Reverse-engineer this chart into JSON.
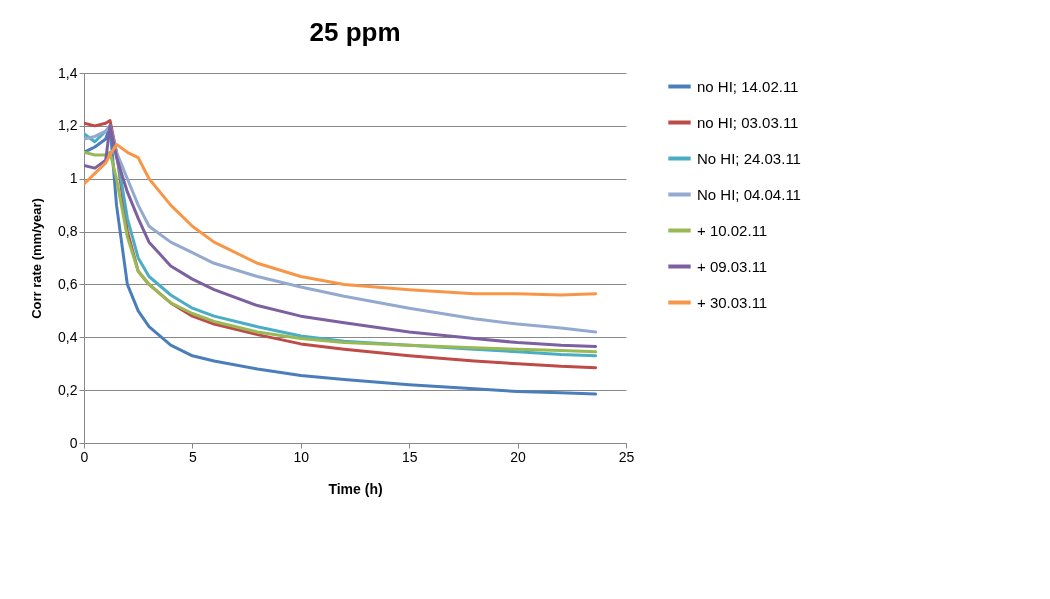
{
  "chart_data": {
    "type": "line",
    "title": "25 ppm",
    "xlabel": "Time (h)",
    "ylabel": "Corr rate (mm/year)",
    "xlim": [
      0,
      25
    ],
    "xticks": [
      0,
      5,
      10,
      15,
      20,
      25
    ],
    "ylim": [
      0,
      1.4
    ],
    "yticks": [
      0,
      {
        "value": 0.2,
        "label": "0,2"
      },
      {
        "value": 0.4,
        "label": "0,4"
      },
      {
        "value": 0.6,
        "label": "0,6"
      },
      {
        "value": 0.8,
        "label": "0,8"
      },
      1,
      {
        "value": 1.2,
        "label": "1,2"
      },
      {
        "value": 1.4,
        "label": "1,4"
      }
    ],
    "grid": "y",
    "legend": "right",
    "marker": "none",
    "line_style": "solid",
    "x": [
      0,
      0.5,
      1,
      1.2,
      1.5,
      2,
      2.5,
      3,
      4,
      5,
      6,
      8,
      10,
      12,
      15,
      18,
      20,
      22,
      23.6
    ],
    "series": [
      {
        "name": "no HI; 14.02.11",
        "color": "#4a7ebb",
        "values": [
          1.1,
          1.12,
          1.15,
          1.2,
          0.9,
          0.6,
          0.5,
          0.44,
          0.37,
          0.33,
          0.31,
          0.28,
          0.255,
          0.24,
          0.22,
          0.205,
          0.195,
          0.19,
          0.185
        ]
      },
      {
        "name": "no HI; 03.03.11",
        "color": "#be4b48",
        "values": [
          1.21,
          1.2,
          1.21,
          1.22,
          1.1,
          0.8,
          0.65,
          0.6,
          0.53,
          0.48,
          0.45,
          0.41,
          0.375,
          0.355,
          0.33,
          0.31,
          0.3,
          0.29,
          0.285
        ]
      },
      {
        "name": "No HI; 24.03.11",
        "color": "#4bacc6",
        "values": [
          1.17,
          1.14,
          1.18,
          1.2,
          1.1,
          0.85,
          0.7,
          0.63,
          0.56,
          0.51,
          0.48,
          0.44,
          0.405,
          0.385,
          0.37,
          0.355,
          0.345,
          0.335,
          0.33
        ]
      },
      {
        "name": "No HI; 04.04.11",
        "color": "#93a9cf",
        "values": [
          1.15,
          1.16,
          1.18,
          1.2,
          1.1,
          1.0,
          0.9,
          0.82,
          0.76,
          0.72,
          0.68,
          0.63,
          0.59,
          0.555,
          0.51,
          0.47,
          0.45,
          0.435,
          0.42
        ]
      },
      {
        "name": "+ 10.02.11",
        "color": "#98b954",
        "values": [
          1.1,
          1.09,
          1.09,
          1.1,
          1.0,
          0.78,
          0.65,
          0.6,
          0.53,
          0.49,
          0.46,
          0.42,
          0.395,
          0.38,
          0.37,
          0.36,
          0.355,
          0.35,
          0.345
        ]
      },
      {
        "name": "+ 09.03.11",
        "color": "#7d60a0",
        "values": [
          1.05,
          1.04,
          1.07,
          1.2,
          1.08,
          0.95,
          0.85,
          0.76,
          0.67,
          0.62,
          0.58,
          0.52,
          0.48,
          0.455,
          0.42,
          0.395,
          0.38,
          0.37,
          0.365
        ]
      },
      {
        "name": "+ 30.03.11",
        "color": "#f79646",
        "values": [
          0.98,
          1.02,
          1.06,
          1.09,
          1.13,
          1.1,
          1.08,
          1.0,
          0.9,
          0.82,
          0.76,
          0.68,
          0.63,
          0.6,
          0.58,
          0.565,
          0.565,
          0.56,
          0.565
        ]
      }
    ]
  }
}
